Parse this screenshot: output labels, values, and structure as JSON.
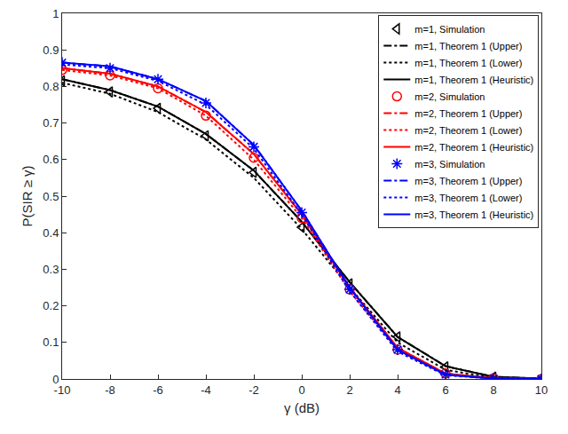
{
  "chart_data": {
    "type": "line",
    "x_label": "γ (dB)",
    "y_label": "P(SIR ≥ γ)",
    "x": [
      -10,
      -8,
      -6,
      -4,
      -2,
      0,
      2,
      4,
      6,
      8,
      10
    ],
    "xlim": [
      -10,
      10
    ],
    "xticks": [
      -10,
      -8,
      -6,
      -4,
      -2,
      0,
      2,
      4,
      6,
      8,
      10
    ],
    "ylim": [
      0,
      1
    ],
    "yticks": [
      0,
      0.1,
      0.2,
      0.3,
      0.4,
      0.5,
      0.6,
      0.7,
      0.8,
      0.9,
      1
    ],
    "grid": false,
    "legend": "top-right",
    "series": [
      {
        "name": "m=1, Simulation",
        "type": "scatter",
        "color": "#000000",
        "marker": "triangle-left-open",
        "values": [
          0.815,
          0.785,
          0.74,
          0.665,
          0.565,
          0.415,
          0.26,
          0.115,
          0.033,
          0.005,
          0.0
        ]
      },
      {
        "name": "m=1, Theorem 1 (Upper)",
        "type": "line",
        "color": "#000000",
        "line_style": "dashdot",
        "values": [
          0.82,
          0.79,
          0.745,
          0.67,
          0.57,
          0.43,
          0.265,
          0.115,
          0.035,
          0.006,
          0.001
        ]
      },
      {
        "name": "m=1, Theorem 1 (Lower)",
        "type": "line",
        "color": "#000000",
        "line_style": "dot",
        "values": [
          0.81,
          0.78,
          0.73,
          0.655,
          0.55,
          0.41,
          0.25,
          0.1,
          0.025,
          0.003,
          0.0
        ]
      },
      {
        "name": "m=1, Theorem 1 (Heuristic)",
        "type": "line",
        "color": "#000000",
        "line_style": "solid",
        "values": [
          0.82,
          0.79,
          0.745,
          0.67,
          0.57,
          0.43,
          0.265,
          0.115,
          0.035,
          0.006,
          0.001
        ]
      },
      {
        "name": "m=2, Simulation",
        "type": "scatter",
        "color": "#ff0000",
        "marker": "circle-open",
        "values": [
          0.845,
          0.83,
          0.795,
          0.72,
          0.605,
          0.44,
          0.245,
          0.08,
          0.015,
          0.002,
          0.0
        ]
      },
      {
        "name": "m=2, Theorem 1 (Upper)",
        "type": "line",
        "color": "#ff0000",
        "line_style": "dashdot",
        "values": [
          0.85,
          0.835,
          0.8,
          0.73,
          0.615,
          0.45,
          0.25,
          0.085,
          0.015,
          0.002,
          0.0
        ]
      },
      {
        "name": "m=2, Theorem 1 (Lower)",
        "type": "line",
        "color": "#ff0000",
        "line_style": "dot",
        "values": [
          0.845,
          0.83,
          0.795,
          0.72,
          0.6,
          0.44,
          0.24,
          0.08,
          0.012,
          0.001,
          0.0
        ]
      },
      {
        "name": "m=2, Theorem 1 (Heuristic)",
        "type": "line",
        "color": "#ff0000",
        "line_style": "solid",
        "values": [
          0.85,
          0.835,
          0.8,
          0.73,
          0.615,
          0.45,
          0.25,
          0.085,
          0.015,
          0.002,
          0.0
        ]
      },
      {
        "name": "m=3, Simulation",
        "type": "scatter",
        "color": "#0000ff",
        "marker": "asterisk-open",
        "values": [
          0.865,
          0.85,
          0.82,
          0.755,
          0.635,
          0.455,
          0.245,
          0.08,
          0.012,
          0.001,
          0.0
        ]
      },
      {
        "name": "m=3, Theorem 1 (Upper)",
        "type": "line",
        "color": "#0000ff",
        "line_style": "dashdot",
        "values": [
          0.865,
          0.855,
          0.82,
          0.76,
          0.64,
          0.46,
          0.25,
          0.08,
          0.012,
          0.001,
          0.0
        ]
      },
      {
        "name": "m=3, Theorem 1 (Lower)",
        "type": "line",
        "color": "#0000ff",
        "line_style": "dot",
        "values": [
          0.86,
          0.85,
          0.815,
          0.75,
          0.63,
          0.45,
          0.24,
          0.075,
          0.01,
          0.001,
          0.0
        ]
      },
      {
        "name": "m=3, Theorem 1 (Heuristic)",
        "type": "line",
        "color": "#0000ff",
        "line_style": "solid",
        "values": [
          0.865,
          0.855,
          0.82,
          0.76,
          0.64,
          0.46,
          0.25,
          0.08,
          0.012,
          0.001,
          0.0
        ]
      }
    ]
  }
}
